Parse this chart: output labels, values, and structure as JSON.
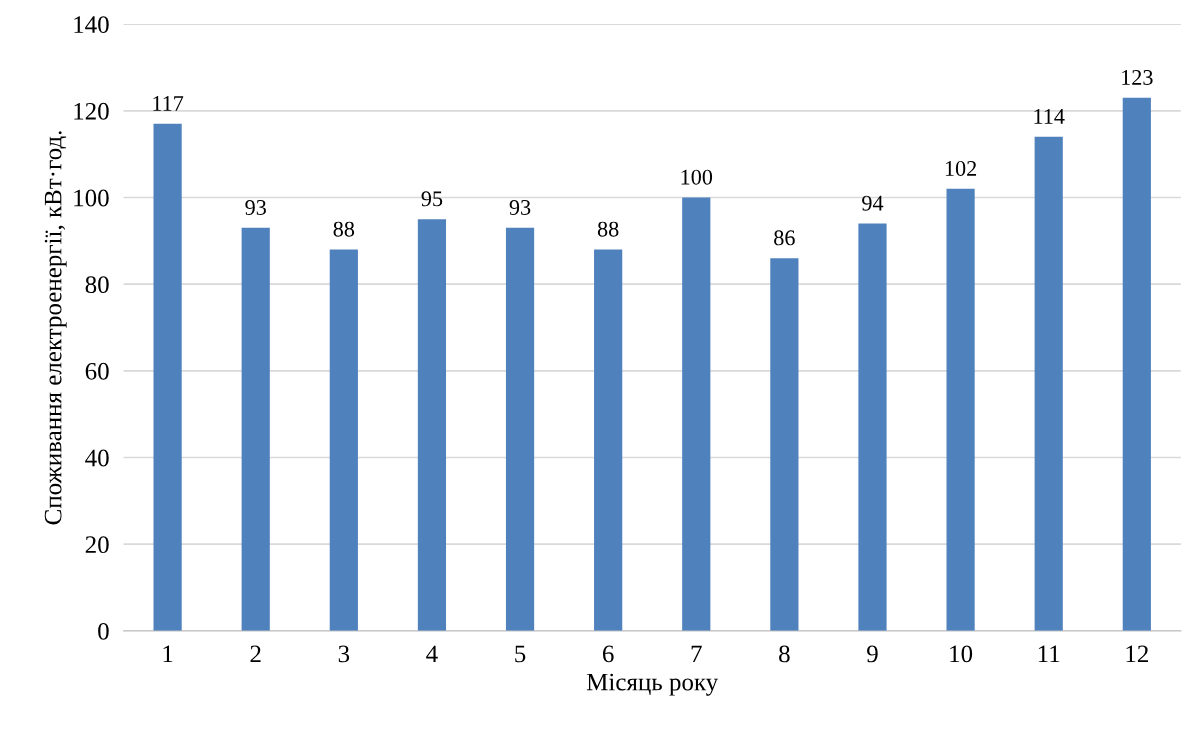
{
  "chart_data": {
    "type": "bar",
    "xlabel": "Місяць року",
    "ylabel": "Споживання електроенергії, кВт·год.",
    "categories": [
      "1",
      "2",
      "3",
      "4",
      "5",
      "6",
      "7",
      "8",
      "9",
      "10",
      "11",
      "12"
    ],
    "values": [
      117,
      93,
      88,
      95,
      93,
      88,
      100,
      86,
      94,
      102,
      114,
      123
    ],
    "color": "#4f81bd",
    "ylim": [
      0,
      140
    ],
    "yticks": [
      0,
      20,
      40,
      60,
      80,
      100,
      120,
      140
    ],
    "grid": "y",
    "data_labels": true
  }
}
